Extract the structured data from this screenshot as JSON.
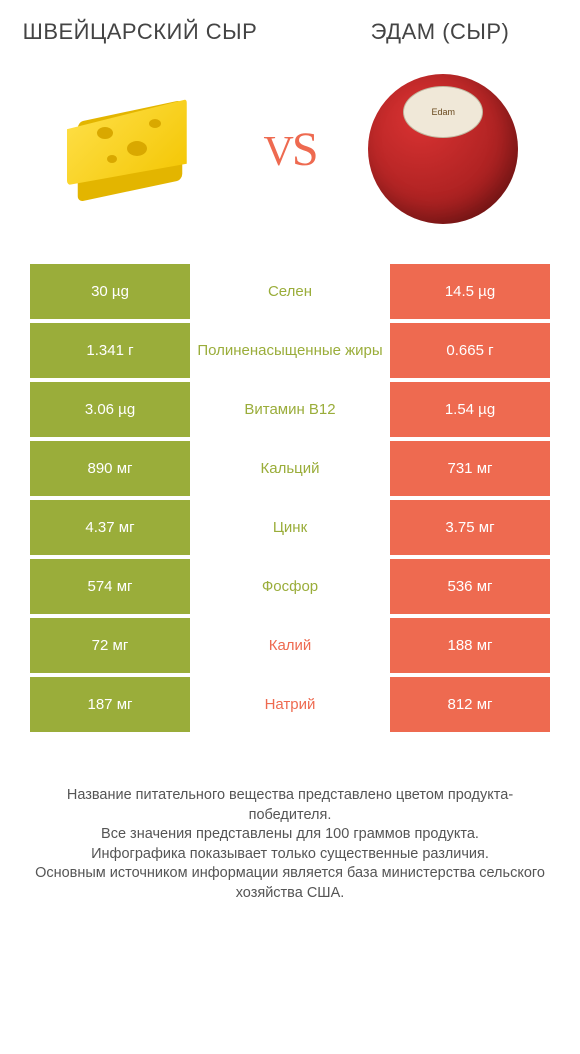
{
  "header": {
    "left": "ШВЕЙЦАРСКИЙ СЫР",
    "right": "ЭДАМ (СЫР)",
    "vs": "VS"
  },
  "colors": {
    "left": "#9aad3a",
    "right": "#ee6a50",
    "row_gap": "#ffffff",
    "text_light": "#ffffff"
  },
  "images": {
    "left_alt": "swiss-cheese-wedge",
    "right_alt": "edam-cheese-ball",
    "edam_label": "Edam"
  },
  "rows": [
    {
      "left": "30 µg",
      "mid": "Селен",
      "right": "14.5 µg",
      "winner": "left"
    },
    {
      "left": "1.341 г",
      "mid": "Полиненасыщенные жиры",
      "right": "0.665 г",
      "winner": "left"
    },
    {
      "left": "3.06 µg",
      "mid": "Витамин B12",
      "right": "1.54 µg",
      "winner": "left"
    },
    {
      "left": "890 мг",
      "mid": "Кальций",
      "right": "731 мг",
      "winner": "left"
    },
    {
      "left": "4.37 мг",
      "mid": "Цинк",
      "right": "3.75 мг",
      "winner": "left"
    },
    {
      "left": "574 мг",
      "mid": "Фосфор",
      "right": "536 мг",
      "winner": "left"
    },
    {
      "left": "72 мг",
      "mid": "Калий",
      "right": "188 мг",
      "winner": "right"
    },
    {
      "left": "187 мг",
      "mid": "Натрий",
      "right": "812 мг",
      "winner": "right"
    }
  ],
  "footer": {
    "line1": "Название питательного вещества представлено цветом продукта-победителя.",
    "line2": "Все значения представлены для 100 граммов продукта.",
    "line3": "Инфографика показывает только существенные различия.",
    "line4": "Основным источником информации является база министерства сельского хозяйства США."
  }
}
